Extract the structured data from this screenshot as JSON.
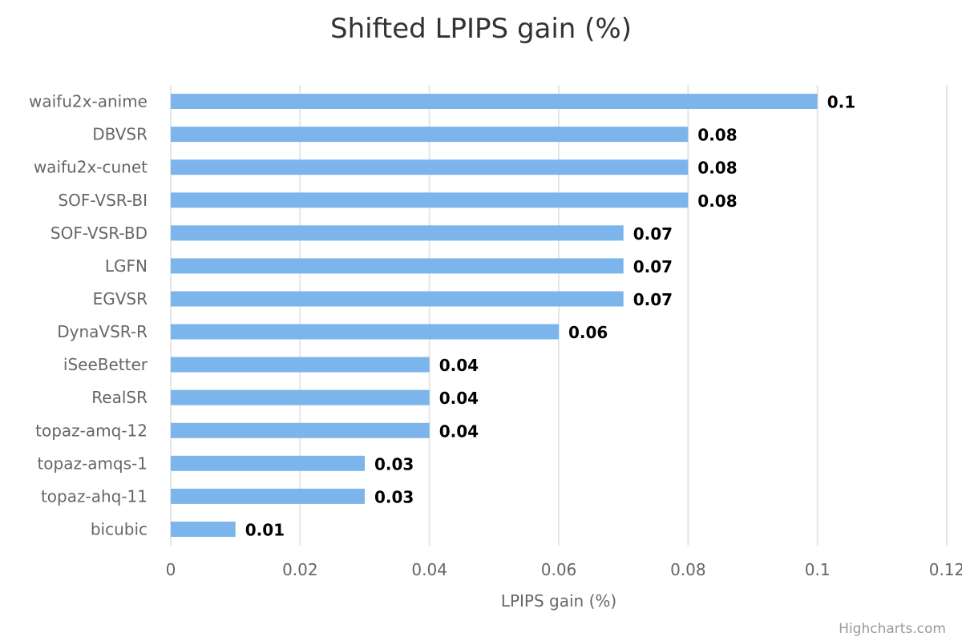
{
  "chart_data": {
    "type": "bar",
    "orientation": "horizontal",
    "title": "Shifted LPIPS gain (%)",
    "xlabel": "LPIPS gain (%)",
    "categories": [
      "waifu2x-anime",
      "DBVSR",
      "waifu2x-cunet",
      "SOF-VSR-BI",
      "SOF-VSR-BD",
      "LGFN",
      "EGVSR",
      "DynaVSR-R",
      "iSeeBetter",
      "RealSR",
      "topaz-amq-12",
      "topaz-amqs-1",
      "topaz-ahq-11",
      "bicubic"
    ],
    "values": [
      0.1,
      0.08,
      0.08,
      0.08,
      0.07,
      0.07,
      0.07,
      0.06,
      0.04,
      0.04,
      0.04,
      0.03,
      0.03,
      0.01
    ],
    "data_labels": [
      "0.1",
      "0.08",
      "0.08",
      "0.08",
      "0.07",
      "0.07",
      "0.07",
      "0.06",
      "0.04",
      "0.04",
      "0.04",
      "0.03",
      "0.03",
      "0.01"
    ],
    "xlim": [
      0,
      0.12
    ],
    "xticks": [
      0,
      0.02,
      0.04,
      0.06,
      0.08,
      0.1,
      0.12
    ],
    "xtick_labels": [
      "0",
      "0.02",
      "0.04",
      "0.06",
      "0.08",
      "0.1",
      "0.12"
    ],
    "grid": true,
    "bar_color": "#7cb5ec",
    "grid_color": "#e6e6e6"
  },
  "credits": "Highcharts.com"
}
